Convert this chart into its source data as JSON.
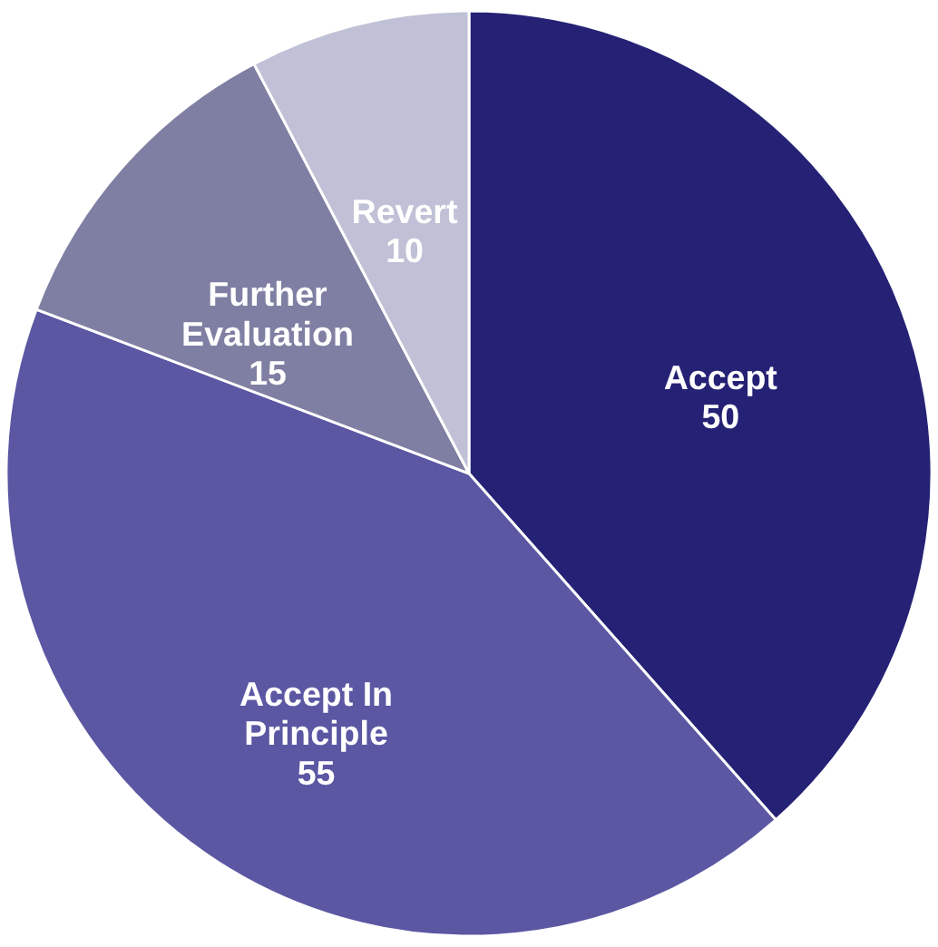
{
  "chart_data": {
    "type": "pie",
    "categories": [
      "Accept",
      "Accept In Principle",
      "Further Evaluation",
      "Revert"
    ],
    "values": [
      50,
      55,
      15,
      10
    ],
    "colors": [
      "#252275",
      "#5b57a3",
      "#7f7fa3",
      "#c0c1d6"
    ],
    "data_labels": true,
    "legend": false
  }
}
